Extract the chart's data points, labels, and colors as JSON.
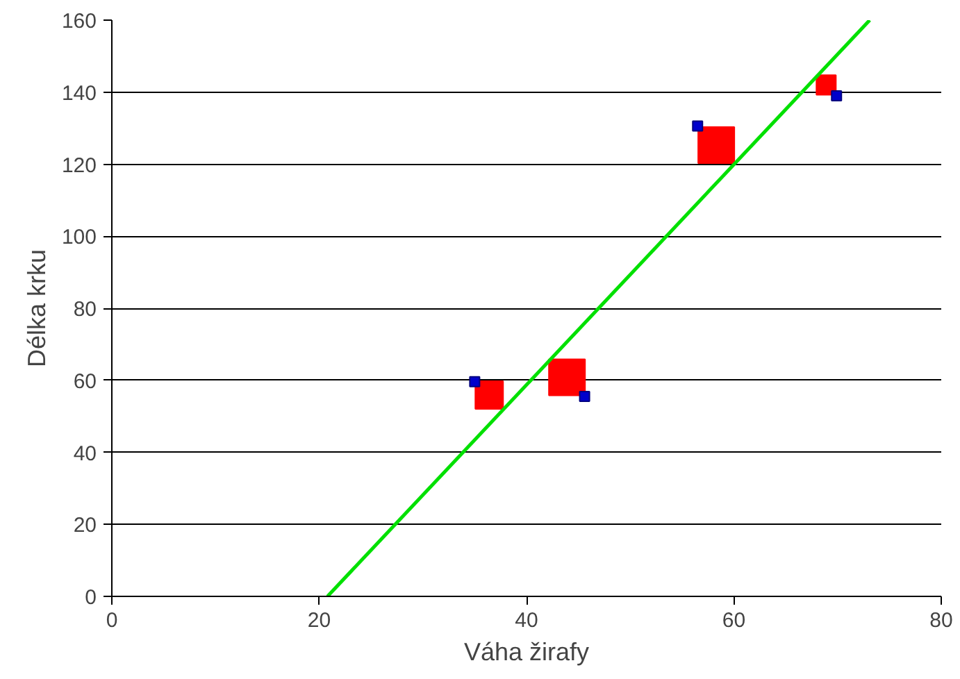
{
  "chart_data": {
    "type": "scatter",
    "xlabel": "Váha žirafy",
    "ylabel": "Délka krku",
    "xlim": [
      0,
      80
    ],
    "ylim": [
      0,
      160
    ],
    "xticks": [
      0,
      20,
      40,
      60,
      80
    ],
    "yticks": [
      0,
      20,
      40,
      60,
      80,
      100,
      120,
      140,
      160
    ],
    "grid": "y",
    "marker": "square",
    "series": [
      {
        "type": "bubble",
        "color": "#ff0000",
        "x": [
          36.4,
          43.9,
          58.3,
          68.9
        ],
        "values": [
          55.9,
          60.8,
          125.3,
          142
        ],
        "sizes": [
          0.59,
          1,
          1,
          0.29
        ]
      },
      {
        "color": "#0000cc",
        "x": [
          35,
          45.6,
          56.5,
          69.9
        ],
        "values": [
          59.6,
          55.5,
          130.6,
          139
        ]
      },
      {
        "type": "line",
        "color": "#00e000",
        "x": [
          20.8,
          73.1
        ],
        "values": [
          0,
          160
        ],
        "marker": "none"
      }
    ]
  }
}
